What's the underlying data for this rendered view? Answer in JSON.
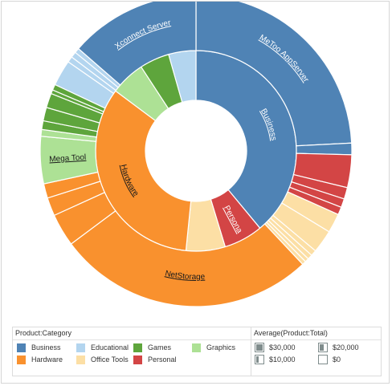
{
  "chart_data": {
    "type": "sunburst",
    "legend_category": {
      "title": "Product:Category",
      "items": [
        {
          "label": "Business",
          "color": "#4f83b5"
        },
        {
          "label": "Educational",
          "color": "#b3d5ef"
        },
        {
          "label": "Games",
          "color": "#5ea53c"
        },
        {
          "label": "Graphics",
          "color": "#ade195"
        },
        {
          "label": "Hardware",
          "color": "#f9912e"
        },
        {
          "label": "Office Tools",
          "color": "#fcdfa5"
        },
        {
          "label": "Personal",
          "color": "#d34545"
        }
      ]
    },
    "legend_size": {
      "title": "Average(Product:Total)",
      "items": [
        {
          "label": "$30,000",
          "fraction": 0.75
        },
        {
          "label": "$20,000",
          "fraction": 0.5
        },
        {
          "label": "$10,000",
          "fraction": 0.25
        },
        {
          "label": "$0",
          "fraction": 0.0
        }
      ]
    },
    "segment_labels": {
      "Business": "Business",
      "Xconnect Server": "Xconnect Server",
      "MeToo AppServer": "MeToo AppServer",
      "Hardware": "Hardware",
      "NetStorage": "NetStorage",
      "Mega Tool": "Mega Tool",
      "Personal": "Persona"
    },
    "inner_ring": [
      {
        "category": "Business",
        "value": 39.0
      },
      {
        "category": "Personal",
        "value": 6.3
      },
      {
        "category": "Office Tools",
        "value": 6.3
      },
      {
        "category": "Hardware",
        "value": 33.6
      },
      {
        "category": "Graphics",
        "value": 5.6
      },
      {
        "category": "Games",
        "value": 4.8
      },
      {
        "category": "Educational",
        "value": 4.4
      }
    ],
    "outer_ring": [
      {
        "name": "MeToo AppServer",
        "category": "Business",
        "value": 24.2
      },
      {
        "name": "",
        "category": "Business",
        "value": 1.2
      },
      {
        "name": "",
        "category": "Personal",
        "value": 3.4
      },
      {
        "name": "",
        "category": "Personal",
        "value": 1.2
      },
      {
        "name": "",
        "category": "Personal",
        "value": 0.9
      },
      {
        "name": "",
        "category": "Personal",
        "value": 0.8
      },
      {
        "name": "",
        "category": "Office Tools",
        "value": 2.0
      },
      {
        "name": "",
        "category": "Office Tools",
        "value": 2.4
      },
      {
        "name": "",
        "category": "Office Tools",
        "value": 0.6
      },
      {
        "name": "",
        "category": "Office Tools",
        "value": 0.5
      },
      {
        "name": "",
        "category": "Office Tools",
        "value": 0.4
      },
      {
        "name": "",
        "category": "Office Tools",
        "value": 0.4
      },
      {
        "name": "NetStorage",
        "category": "Hardware",
        "value": 26.8
      },
      {
        "name": "",
        "category": "Hardware",
        "value": 3.4
      },
      {
        "name": "",
        "category": "Hardware",
        "value": 1.9
      },
      {
        "name": "",
        "category": "Hardware",
        "value": 1.5
      },
      {
        "name": "Mega Tool",
        "category": "Graphics",
        "value": 4.9
      },
      {
        "name": "",
        "category": "Graphics",
        "value": 0.7
      },
      {
        "name": "",
        "category": "Games",
        "value": 0.9
      },
      {
        "name": "",
        "category": "Games",
        "value": 1.4
      },
      {
        "name": "",
        "category": "Games",
        "value": 1.5
      },
      {
        "name": "",
        "category": "Games",
        "value": 0.4
      },
      {
        "name": "",
        "category": "Games",
        "value": 0.6
      },
      {
        "name": "",
        "category": "Educational",
        "value": 2.7
      },
      {
        "name": "",
        "category": "Educational",
        "value": 0.6
      },
      {
        "name": "",
        "category": "Educational",
        "value": 0.6
      },
      {
        "name": "",
        "category": "Educational",
        "value": 0.5
      },
      {
        "name": "Xconnect Server",
        "category": "Business",
        "value": 13.6
      }
    ]
  }
}
